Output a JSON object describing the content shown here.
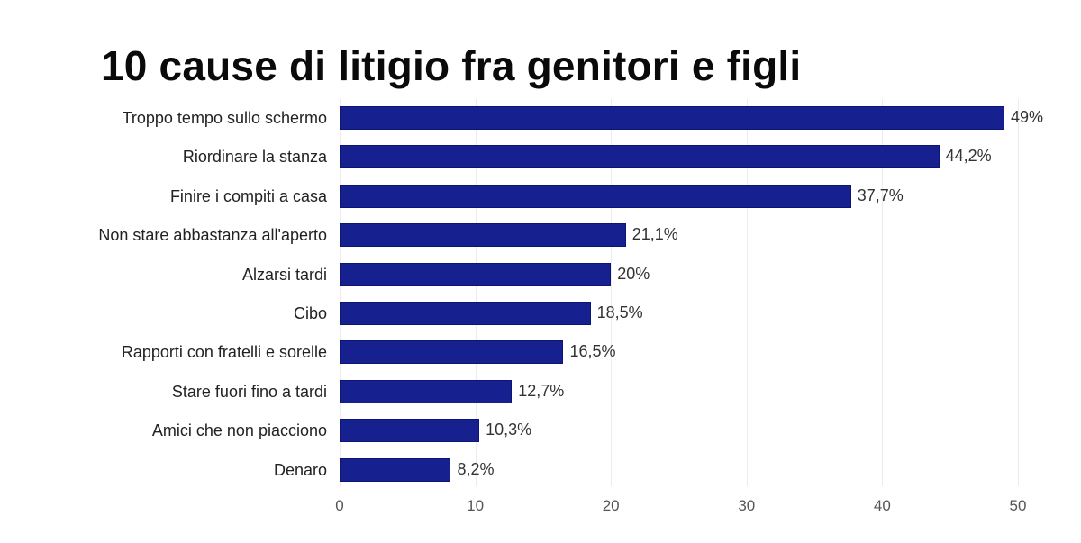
{
  "title": "10 cause di litigio fra genitori e figli",
  "colors": {
    "bar": "#16208e",
    "grid": "#ececec",
    "text": "#222222"
  },
  "chart_data": {
    "type": "bar",
    "orientation": "horizontal",
    "title": "10 cause di litigio fra genitori e figli",
    "xlabel": "",
    "ylabel": "",
    "xlim": [
      0,
      50
    ],
    "grid": true,
    "categories": [
      "Troppo tempo sullo schermo",
      "Riordinare la stanza",
      "Finire i compiti a casa",
      "Non stare abbastanza all'aperto",
      "Alzarsi tardi",
      "Cibo",
      "Rapporti con fratelli e sorelle",
      "Stare fuori fino a tardi",
      "Amici che non piacciono",
      "Denaro"
    ],
    "values": [
      49,
      44.2,
      37.7,
      21.1,
      20,
      18.5,
      16.5,
      12.7,
      10.3,
      8.2
    ],
    "value_labels": [
      "49%",
      "44,2%",
      "37,7%",
      "21,1%",
      "20%",
      "18,5%",
      "16,5%",
      "12,7%",
      "10,3%",
      "8,2%"
    ],
    "x_ticks": [
      "0",
      "10",
      "20",
      "30",
      "40",
      "50"
    ]
  }
}
